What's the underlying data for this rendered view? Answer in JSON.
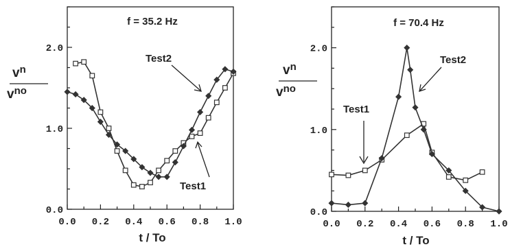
{
  "chart_data": [
    {
      "type": "line",
      "title": "f = 35.2 Hz",
      "xlabel": "t / To",
      "ylabel": "vn / vno",
      "ylabel_num": "v",
      "ylabel_num_sub": "n",
      "ylabel_den": "v",
      "ylabel_den_sub": "no",
      "xlim": [
        0,
        1
      ],
      "ylim": [
        0,
        2.5
      ],
      "x_ticks": [
        "0.0",
        "0.2",
        "0.4",
        "0.6",
        "0.8",
        "1.0"
      ],
      "x_tick_values": [
        0,
        0.2,
        0.4,
        0.6,
        0.8,
        1.0
      ],
      "y_ticks": [
        "0.0",
        "1.0",
        "2.0"
      ],
      "y_tick_values": [
        0,
        1,
        2
      ],
      "series": [
        {
          "name": "Test1",
          "marker": "square",
          "x": [
            0.05,
            0.1,
            0.15,
            0.2,
            0.25,
            0.3,
            0.35,
            0.4,
            0.45,
            0.5,
            0.55,
            0.6,
            0.65,
            0.7,
            0.75,
            0.8,
            0.85,
            0.9,
            0.95,
            1.0
          ],
          "y": [
            1.8,
            1.82,
            1.65,
            1.2,
            1.0,
            0.72,
            0.48,
            0.3,
            0.28,
            0.33,
            0.48,
            0.6,
            0.72,
            0.82,
            0.9,
            0.94,
            1.13,
            1.32,
            1.5,
            1.68
          ]
        },
        {
          "name": "Test2",
          "marker": "diamond",
          "x": [
            0.0,
            0.05,
            0.1,
            0.15,
            0.2,
            0.25,
            0.3,
            0.35,
            0.4,
            0.45,
            0.5,
            0.55,
            0.6,
            0.65,
            0.7,
            0.75,
            0.8,
            0.85,
            0.9,
            0.95,
            1.0
          ],
          "y": [
            1.45,
            1.42,
            1.35,
            1.25,
            1.08,
            0.92,
            0.8,
            0.72,
            0.62,
            0.52,
            0.45,
            0.4,
            0.4,
            0.58,
            0.78,
            0.98,
            1.2,
            1.4,
            1.6,
            1.73,
            1.7
          ]
        }
      ],
      "annotations": [
        {
          "text": "Test2",
          "series": "Test2"
        },
        {
          "text": "Test1",
          "series": "Test1"
        }
      ]
    },
    {
      "type": "line",
      "title": "f = 70.4 Hz",
      "xlabel": "t / To",
      "ylabel": "vn / vno",
      "ylabel_num": "v",
      "ylabel_num_sub": "n",
      "ylabel_den": "v",
      "ylabel_den_sub": "no",
      "xlim": [
        0,
        1
      ],
      "ylim": [
        0,
        2.5
      ],
      "x_ticks": [
        "0.0",
        "0.2",
        "0.4",
        "0.6",
        "0.8",
        "1.0"
      ],
      "x_tick_values": [
        0,
        0.2,
        0.4,
        0.6,
        0.8,
        1.0
      ],
      "y_ticks": [
        "0.0",
        "1.0",
        "2.0"
      ],
      "y_tick_values": [
        0,
        1,
        2
      ],
      "series": [
        {
          "name": "Test1",
          "marker": "square",
          "x": [
            0.0,
            0.1,
            0.2,
            0.3,
            0.45,
            0.55,
            0.6,
            0.7,
            0.8,
            0.9
          ],
          "y": [
            0.45,
            0.44,
            0.5,
            0.63,
            0.93,
            1.07,
            0.72,
            0.42,
            0.38,
            0.48
          ]
        },
        {
          "name": "Test2",
          "marker": "diamond",
          "x": [
            0.0,
            0.1,
            0.2,
            0.3,
            0.4,
            0.45,
            0.47,
            0.5,
            0.55,
            0.6,
            0.7,
            0.8,
            0.9,
            1.0
          ],
          "y": [
            0.1,
            0.08,
            0.1,
            0.65,
            1.4,
            2.0,
            1.73,
            1.27,
            1.0,
            0.7,
            0.5,
            0.25,
            0.05,
            0.0
          ]
        }
      ],
      "annotations": [
        {
          "text": "Test2",
          "series": "Test2"
        },
        {
          "text": "Test1",
          "series": "Test1"
        }
      ]
    }
  ]
}
